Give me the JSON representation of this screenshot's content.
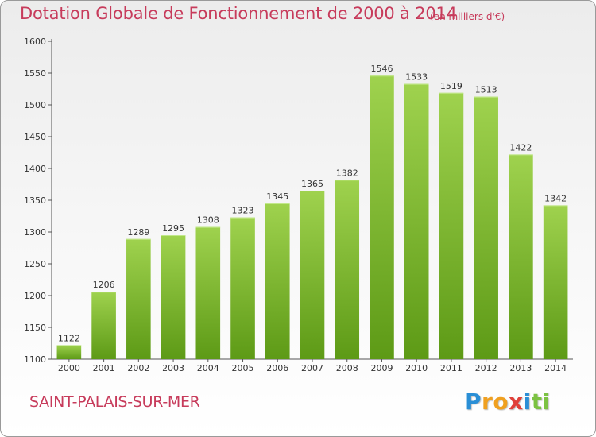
{
  "title": "Dotation Globale de Fonctionnement de 2000 à 2014",
  "unit_label": "(en milliers d'€)",
  "town_name": "SAINT-PALAIS-SUR-MER",
  "logo": {
    "text": "Proxiti",
    "letters": [
      {
        "ch": "P",
        "color": "#2a8fd6"
      },
      {
        "ch": "r",
        "color": "#f0a020"
      },
      {
        "ch": "o",
        "color": "#f0a020"
      },
      {
        "ch": "x",
        "color": "#e0403a"
      },
      {
        "ch": "i",
        "color": "#2a8fd6"
      },
      {
        "ch": "t",
        "color": "#7cc242"
      },
      {
        "ch": "i",
        "color": "#7cc242"
      }
    ]
  },
  "colors": {
    "title": "#c73b5b",
    "bar_top": "#9fd24e",
    "bar_bottom": "#5d9a16",
    "axis": "#555555",
    "grid": "#d4d4d4"
  },
  "chart_data": {
    "type": "bar",
    "title": "Dotation Globale de Fonctionnement de 2000 à 2014",
    "xlabel": "",
    "ylabel": "",
    "categories": [
      "2000",
      "2001",
      "2002",
      "2003",
      "2004",
      "2005",
      "2006",
      "2007",
      "2008",
      "2009",
      "2010",
      "2011",
      "2012",
      "2013",
      "2014"
    ],
    "values": [
      1122,
      1206,
      1289,
      1295,
      1308,
      1323,
      1345,
      1365,
      1382,
      1546,
      1533,
      1519,
      1513,
      1422,
      1342
    ],
    "ylim": [
      1100,
      1600
    ],
    "yticks": [
      1100,
      1150,
      1200,
      1250,
      1300,
      1350,
      1400,
      1450,
      1500,
      1550,
      1600
    ],
    "grid": false,
    "data_labels": true
  }
}
